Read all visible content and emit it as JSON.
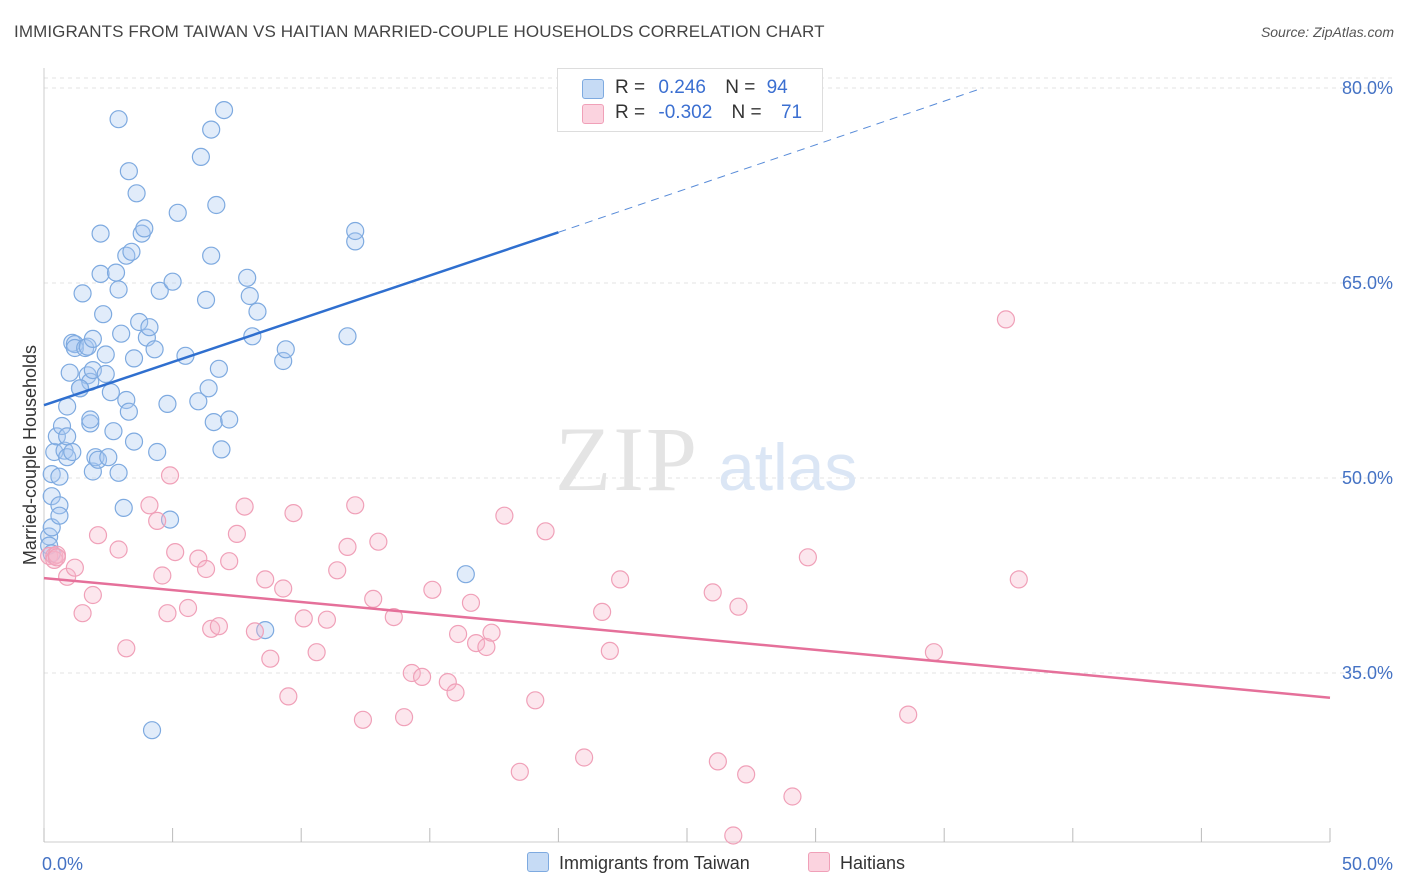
{
  "title": "IMMIGRANTS FROM TAIWAN VS HAITIAN MARRIED-COUPLE HOUSEHOLDS CORRELATION CHART",
  "source": "Source: ZipAtlas.com",
  "watermark": {
    "zip": "ZIP",
    "atlas": "atlas"
  },
  "legend": {
    "rows": [
      {
        "r_label": "R =",
        "r_value": "0.246",
        "n_label": "N =",
        "n_value": "94",
        "color": "#a8c8f0"
      },
      {
        "r_label": "R =",
        "r_value": "-0.302",
        "n_label": "N =",
        "n_value": "71",
        "color": "#f7b8cb"
      }
    ]
  },
  "bottom_legend": [
    {
      "label": "Immigrants from Taiwan",
      "color": "#a8c8f0"
    },
    {
      "label": "Haitians",
      "color": "#f7b8cb"
    }
  ],
  "colors": {
    "taiwan_fill": "rgba(168,200,240,0.35)",
    "taiwan_stroke": "#7eaae0",
    "taiwan_line": "#2f6fcf",
    "haiti_fill": "rgba(247,184,203,0.35)",
    "haiti_stroke": "#f0a0b8",
    "haiti_line": "#e5709a",
    "tick_label": "#4472c4"
  },
  "chart_data": {
    "type": "scatter",
    "title": "IMMIGRANTS FROM TAIWAN VS HAITIAN MARRIED-COUPLE HOUSEHOLDS CORRELATION CHART",
    "xlabel": "",
    "ylabel": "Married-couple Households",
    "xlim": [
      0,
      50
    ],
    "ylim": [
      22,
      81
    ],
    "x_tick_labels": [
      "0.0%",
      "50.0%"
    ],
    "y_ticks": [
      35,
      50,
      65,
      80
    ],
    "y_tick_labels": [
      "35.0%",
      "50.0%",
      "65.0%",
      "80.0%"
    ],
    "grid": true,
    "legend_position": "top-center",
    "series": [
      {
        "name": "Immigrants from Taiwan",
        "R": 0.246,
        "N": 94,
        "trend": {
          "x0": 0,
          "y0": 55.6,
          "x1": 20,
          "y1": 68.9,
          "dashed_to_x": 36.5,
          "dashed_to_y": 80.0
        },
        "points": [
          [
            0.2,
            45.5
          ],
          [
            0.2,
            44.8
          ],
          [
            0.3,
            44.2
          ],
          [
            0.3,
            46.2
          ],
          [
            0.3,
            48.6
          ],
          [
            0.3,
            50.3
          ],
          [
            0.4,
            52.0
          ],
          [
            0.5,
            53.2
          ],
          [
            0.6,
            47.9
          ],
          [
            0.6,
            47.1
          ],
          [
            0.6,
            50.1
          ],
          [
            0.7,
            54.0
          ],
          [
            0.8,
            52.1
          ],
          [
            0.9,
            51.6
          ],
          [
            0.9,
            55.5
          ],
          [
            0.9,
            53.2
          ],
          [
            1.0,
            58.1
          ],
          [
            1.1,
            52.0
          ],
          [
            1.1,
            60.4
          ],
          [
            1.2,
            60.3
          ],
          [
            1.2,
            60.0
          ],
          [
            1.4,
            56.9
          ],
          [
            1.5,
            64.2
          ],
          [
            1.6,
            60.0
          ],
          [
            1.7,
            60.1
          ],
          [
            1.7,
            57.9
          ],
          [
            1.8,
            57.4
          ],
          [
            1.8,
            54.2
          ],
          [
            1.8,
            54.5
          ],
          [
            1.9,
            58.3
          ],
          [
            1.9,
            60.7
          ],
          [
            1.9,
            50.5
          ],
          [
            2.0,
            51.6
          ],
          [
            2.1,
            51.4
          ],
          [
            2.2,
            68.8
          ],
          [
            2.2,
            65.7
          ],
          [
            2.3,
            62.6
          ],
          [
            2.4,
            58.0
          ],
          [
            2.4,
            59.5
          ],
          [
            2.5,
            51.6
          ],
          [
            2.6,
            56.6
          ],
          [
            2.7,
            53.6
          ],
          [
            2.8,
            65.8
          ],
          [
            2.9,
            64.5
          ],
          [
            2.9,
            50.4
          ],
          [
            2.9,
            77.6
          ],
          [
            3.0,
            61.1
          ],
          [
            3.1,
            47.7
          ],
          [
            3.2,
            56.0
          ],
          [
            3.2,
            67.1
          ],
          [
            3.3,
            73.6
          ],
          [
            3.3,
            55.1
          ],
          [
            3.4,
            67.4
          ],
          [
            3.5,
            59.2
          ],
          [
            3.5,
            52.8
          ],
          [
            3.6,
            71.9
          ],
          [
            3.7,
            62.0
          ],
          [
            3.8,
            68.8
          ],
          [
            3.9,
            69.2
          ],
          [
            4.0,
            60.8
          ],
          [
            4.1,
            61.6
          ],
          [
            4.3,
            59.9
          ],
          [
            4.4,
            52.0
          ],
          [
            4.5,
            64.4
          ],
          [
            4.8,
            55.7
          ],
          [
            4.9,
            46.8
          ],
          [
            5.0,
            65.1
          ],
          [
            5.2,
            70.4
          ],
          [
            5.5,
            59.4
          ],
          [
            6.0,
            55.9
          ],
          [
            6.1,
            74.7
          ],
          [
            6.3,
            63.7
          ],
          [
            6.4,
            56.9
          ],
          [
            6.5,
            67.1
          ],
          [
            6.5,
            76.8
          ],
          [
            6.6,
            54.3
          ],
          [
            6.7,
            71.0
          ],
          [
            6.8,
            58.4
          ],
          [
            6.9,
            52.2
          ],
          [
            7.0,
            78.3
          ],
          [
            7.2,
            54.5
          ],
          [
            7.9,
            65.4
          ],
          [
            8.0,
            64.0
          ],
          [
            8.1,
            60.9
          ],
          [
            8.3,
            62.8
          ],
          [
            8.6,
            38.3
          ],
          [
            9.3,
            59.0
          ],
          [
            9.4,
            59.9
          ],
          [
            11.8,
            60.9
          ],
          [
            12.1,
            68.2
          ],
          [
            12.1,
            69.0
          ],
          [
            16.4,
            42.6
          ],
          [
            4.2,
            30.6
          ],
          [
            1.4,
            56.9
          ]
        ]
      },
      {
        "name": "Haitians",
        "R": -0.302,
        "N": 71,
        "trend": {
          "x0": 0,
          "y0": 42.3,
          "x1": 50,
          "y1": 33.1
        },
        "points": [
          [
            0.2,
            44.0
          ],
          [
            0.4,
            44.0
          ],
          [
            0.4,
            43.7
          ],
          [
            0.5,
            44.1
          ],
          [
            0.5,
            43.9
          ],
          [
            0.9,
            42.4
          ],
          [
            1.2,
            43.1
          ],
          [
            1.5,
            39.6
          ],
          [
            1.9,
            41.0
          ],
          [
            2.1,
            45.6
          ],
          [
            2.9,
            44.5
          ],
          [
            3.2,
            36.9
          ],
          [
            4.1,
            47.9
          ],
          [
            4.4,
            46.7
          ],
          [
            4.6,
            42.5
          ],
          [
            4.8,
            39.6
          ],
          [
            4.9,
            50.2
          ],
          [
            5.1,
            44.3
          ],
          [
            5.6,
            40.0
          ],
          [
            6.0,
            43.8
          ],
          [
            6.3,
            43.0
          ],
          [
            6.5,
            38.4
          ],
          [
            6.8,
            38.6
          ],
          [
            7.2,
            43.6
          ],
          [
            7.5,
            45.7
          ],
          [
            7.8,
            47.8
          ],
          [
            8.2,
            38.2
          ],
          [
            8.6,
            42.2
          ],
          [
            8.8,
            36.1
          ],
          [
            9.3,
            41.5
          ],
          [
            9.5,
            33.2
          ],
          [
            9.7,
            47.3
          ],
          [
            10.1,
            39.2
          ],
          [
            10.6,
            36.6
          ],
          [
            11.0,
            39.1
          ],
          [
            11.4,
            42.9
          ],
          [
            11.8,
            44.7
          ],
          [
            12.1,
            47.9
          ],
          [
            12.4,
            31.4
          ],
          [
            12.8,
            40.7
          ],
          [
            13.0,
            45.1
          ],
          [
            13.6,
            39.3
          ],
          [
            14.0,
            31.6
          ],
          [
            14.3,
            35.0
          ],
          [
            14.7,
            34.7
          ],
          [
            15.1,
            41.4
          ],
          [
            15.7,
            34.3
          ],
          [
            16.0,
            33.5
          ],
          [
            16.1,
            38.0
          ],
          [
            16.6,
            40.4
          ],
          [
            16.8,
            37.3
          ],
          [
            17.2,
            37.0
          ],
          [
            17.4,
            38.1
          ],
          [
            17.9,
            47.1
          ],
          [
            18.5,
            27.4
          ],
          [
            19.1,
            32.9
          ],
          [
            19.5,
            45.9
          ],
          [
            21.0,
            28.5
          ],
          [
            21.7,
            39.7
          ],
          [
            22.0,
            36.7
          ],
          [
            22.4,
            42.2
          ],
          [
            26.0,
            41.2
          ],
          [
            26.2,
            28.2
          ],
          [
            26.8,
            22.5
          ],
          [
            27.0,
            40.1
          ],
          [
            27.3,
            27.2
          ],
          [
            29.1,
            25.5
          ],
          [
            29.7,
            43.9
          ],
          [
            33.6,
            31.8
          ],
          [
            34.6,
            36.6
          ],
          [
            37.9,
            42.2
          ],
          [
            37.4,
            62.2
          ]
        ]
      }
    ]
  }
}
